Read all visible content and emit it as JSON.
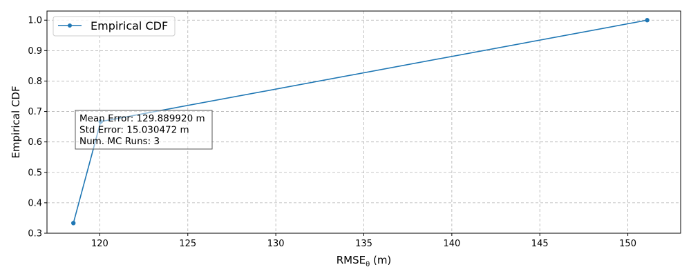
{
  "chart_data": {
    "type": "line",
    "title": "",
    "xlabel": "RMSE",
    "xlabel_subscript": "θ",
    "xlabel_unit": " (m)",
    "ylabel": "Empirical CDF",
    "xlim": [
      117,
      153
    ],
    "ylim": [
      0.3,
      1.03
    ],
    "xticks": [
      120,
      125,
      130,
      135,
      140,
      145,
      150
    ],
    "yticks": [
      0.3,
      0.4,
      0.5,
      0.6,
      0.7,
      0.8,
      0.9,
      1.0
    ],
    "xtick_labels": [
      "120",
      "125",
      "130",
      "135",
      "140",
      "145",
      "150"
    ],
    "ytick_labels": [
      "0.3",
      "0.4",
      "0.5",
      "0.6",
      "0.7",
      "0.8",
      "0.9",
      "1.0"
    ],
    "grid": true,
    "legend_position": "top-left",
    "series": [
      {
        "name": "Empirical CDF",
        "color": "#1f77b4",
        "marker": "circle",
        "x": [
          118.5,
          120.05,
          151.1
        ],
        "y": [
          0.3333,
          0.6667,
          1.0
        ]
      }
    ],
    "annotation": {
      "lines": [
        "Mean Error: 129.889920 m",
        "Std Error: 15.030472 m",
        "Num. MC Runs: 3"
      ]
    }
  }
}
